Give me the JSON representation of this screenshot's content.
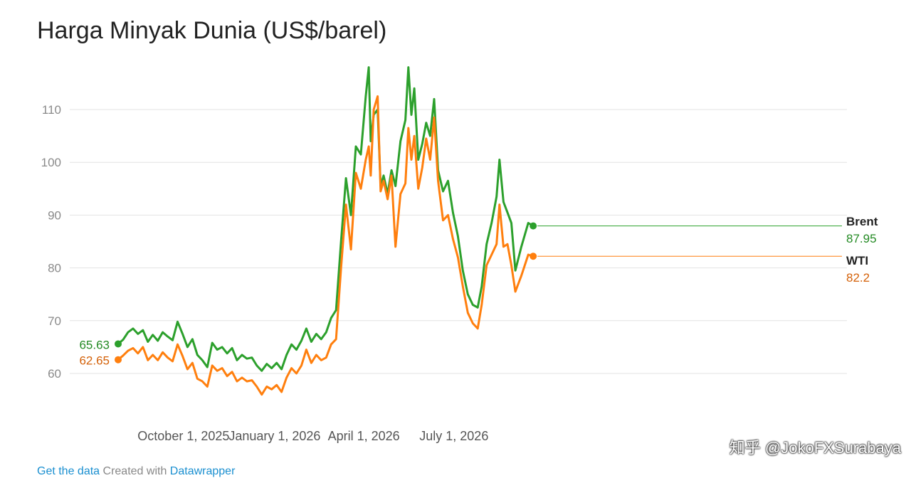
{
  "chart_data": {
    "type": "line",
    "title": "Harga Minyak Dunia (US$/barel)",
    "ylim": [
      55,
      118
    ],
    "yticks": [
      60,
      70,
      80,
      90,
      100,
      110
    ],
    "grid": true,
    "x_tick_labels": [
      {
        "date": "2025-10-01",
        "label": "October 1, 2025"
      },
      {
        "date": "2026-01-01",
        "label": "January 1, 2026"
      },
      {
        "date": "2026-04-01",
        "label": "April 1, 2026"
      },
      {
        "date": "2026-07-01",
        "label": "July 1, 2026"
      }
    ],
    "series": [
      {
        "name": "Brent",
        "color": "#2ca02c",
        "start_label": "65.63",
        "end_label": "87.95",
        "points": [
          [
            "2025-07-27",
            65.6
          ],
          [
            "2025-08-01",
            66.4
          ],
          [
            "2025-08-06",
            67.8
          ],
          [
            "2025-08-11",
            68.5
          ],
          [
            "2025-08-16",
            67.5
          ],
          [
            "2025-08-21",
            68.2
          ],
          [
            "2025-08-26",
            66.0
          ],
          [
            "2025-08-31",
            67.3
          ],
          [
            "2025-09-05",
            66.2
          ],
          [
            "2025-09-10",
            67.8
          ],
          [
            "2025-09-15",
            67.0
          ],
          [
            "2025-09-20",
            66.3
          ],
          [
            "2025-09-25",
            69.8
          ],
          [
            "2025-09-30",
            67.5
          ],
          [
            "2025-10-05",
            65.0
          ],
          [
            "2025-10-10",
            66.5
          ],
          [
            "2025-10-15",
            63.5
          ],
          [
            "2025-10-20",
            62.5
          ],
          [
            "2025-10-25",
            61.2
          ],
          [
            "2025-10-30",
            65.8
          ],
          [
            "2025-11-04",
            64.5
          ],
          [
            "2025-11-09",
            65.0
          ],
          [
            "2025-11-14",
            63.8
          ],
          [
            "2025-11-19",
            64.8
          ],
          [
            "2025-11-24",
            62.5
          ],
          [
            "2025-11-29",
            63.5
          ],
          [
            "2025-12-04",
            62.8
          ],
          [
            "2025-12-09",
            63.0
          ],
          [
            "2025-12-14",
            61.5
          ],
          [
            "2025-12-19",
            60.5
          ],
          [
            "2025-12-24",
            61.8
          ],
          [
            "2025-12-29",
            61.0
          ],
          [
            "2026-01-03",
            62.0
          ],
          [
            "2026-01-08",
            60.8
          ],
          [
            "2026-01-13",
            63.5
          ],
          [
            "2026-01-18",
            65.5
          ],
          [
            "2026-01-23",
            64.5
          ],
          [
            "2026-01-28",
            66.2
          ],
          [
            "2026-02-02",
            68.5
          ],
          [
            "2026-02-07",
            66.0
          ],
          [
            "2026-02-12",
            67.5
          ],
          [
            "2026-02-17",
            66.5
          ],
          [
            "2026-02-22",
            67.8
          ],
          [
            "2026-02-27",
            70.5
          ],
          [
            "2026-03-04",
            72.0
          ],
          [
            "2026-03-09",
            85.0
          ],
          [
            "2026-03-14",
            97.0
          ],
          [
            "2026-03-19",
            90.0
          ],
          [
            "2026-03-24",
            103.0
          ],
          [
            "2026-03-29",
            101.5
          ],
          [
            "2026-04-03",
            112.5
          ],
          [
            "2026-04-06",
            118.0
          ],
          [
            "2026-04-08",
            104.0
          ],
          [
            "2026-04-11",
            109.0
          ],
          [
            "2026-04-15",
            110.0
          ],
          [
            "2026-04-18",
            95.5
          ],
          [
            "2026-04-21",
            97.5
          ],
          [
            "2026-04-25",
            94.0
          ],
          [
            "2026-04-29",
            98.5
          ],
          [
            "2026-05-03",
            95.5
          ],
          [
            "2026-05-08",
            104.0
          ],
          [
            "2026-05-13",
            108.0
          ],
          [
            "2026-05-16",
            118.0
          ],
          [
            "2026-05-19",
            109.0
          ],
          [
            "2026-05-22",
            114.0
          ],
          [
            "2026-05-26",
            100.5
          ],
          [
            "2026-05-30",
            103.5
          ],
          [
            "2026-06-03",
            107.5
          ],
          [
            "2026-06-07",
            105.0
          ],
          [
            "2026-06-11",
            112.0
          ],
          [
            "2026-06-15",
            98.5
          ],
          [
            "2026-06-20",
            94.5
          ],
          [
            "2026-06-25",
            96.5
          ],
          [
            "2026-06-30",
            90.5
          ],
          [
            "2026-07-05",
            86.0
          ],
          [
            "2026-07-10",
            79.5
          ],
          [
            "2026-07-15",
            75.0
          ],
          [
            "2026-07-20",
            73.0
          ],
          [
            "2026-07-25",
            72.5
          ],
          [
            "2026-07-29",
            76.5
          ],
          [
            "2026-08-03",
            84.5
          ],
          [
            "2026-08-08",
            88.5
          ],
          [
            "2026-08-13",
            93.5
          ],
          [
            "2026-08-16",
            100.5
          ],
          [
            "2026-08-20",
            92.5
          ],
          [
            "2026-08-24",
            90.5
          ],
          [
            "2026-08-28",
            88.5
          ],
          [
            "2026-09-01",
            79.5
          ],
          [
            "2026-09-07",
            84.0
          ],
          [
            "2026-09-14",
            88.5
          ],
          [
            "2026-09-19",
            87.95
          ]
        ]
      },
      {
        "name": "WTI",
        "color": "#ff7f0e",
        "start_label": "62.65",
        "end_label": "82.2",
        "points": [
          [
            "2025-07-27",
            62.6
          ],
          [
            "2025-08-01",
            63.4
          ],
          [
            "2025-08-06",
            64.3
          ],
          [
            "2025-08-11",
            64.8
          ],
          [
            "2025-08-16",
            63.8
          ],
          [
            "2025-08-21",
            65.0
          ],
          [
            "2025-08-26",
            62.5
          ],
          [
            "2025-08-31",
            63.5
          ],
          [
            "2025-09-05",
            62.5
          ],
          [
            "2025-09-10",
            64.0
          ],
          [
            "2025-09-15",
            63.0
          ],
          [
            "2025-09-20",
            62.3
          ],
          [
            "2025-09-25",
            65.5
          ],
          [
            "2025-09-30",
            63.3
          ],
          [
            "2025-10-05",
            60.8
          ],
          [
            "2025-10-10",
            62.0
          ],
          [
            "2025-10-15",
            59.0
          ],
          [
            "2025-10-20",
            58.5
          ],
          [
            "2025-10-25",
            57.5
          ],
          [
            "2025-10-30",
            61.5
          ],
          [
            "2025-11-04",
            60.5
          ],
          [
            "2025-11-09",
            61.0
          ],
          [
            "2025-11-14",
            59.5
          ],
          [
            "2025-11-19",
            60.3
          ],
          [
            "2025-11-24",
            58.5
          ],
          [
            "2025-11-29",
            59.2
          ],
          [
            "2025-12-04",
            58.5
          ],
          [
            "2025-12-09",
            58.7
          ],
          [
            "2025-12-14",
            57.5
          ],
          [
            "2025-12-19",
            56.0
          ],
          [
            "2025-12-24",
            57.5
          ],
          [
            "2025-12-29",
            57.0
          ],
          [
            "2026-01-03",
            57.8
          ],
          [
            "2026-01-08",
            56.5
          ],
          [
            "2026-01-13",
            59.2
          ],
          [
            "2026-01-18",
            61.0
          ],
          [
            "2026-01-23",
            60.0
          ],
          [
            "2026-01-28",
            61.5
          ],
          [
            "2026-02-02",
            64.5
          ],
          [
            "2026-02-07",
            62.0
          ],
          [
            "2026-02-12",
            63.5
          ],
          [
            "2026-02-17",
            62.5
          ],
          [
            "2026-02-22",
            63.0
          ],
          [
            "2026-02-27",
            65.5
          ],
          [
            "2026-03-04",
            66.5
          ],
          [
            "2026-03-09",
            80.0
          ],
          [
            "2026-03-14",
            92.0
          ],
          [
            "2026-03-19",
            83.5
          ],
          [
            "2026-03-24",
            98.0
          ],
          [
            "2026-03-29",
            95.0
          ],
          [
            "2026-04-03",
            100.5
          ],
          [
            "2026-04-06",
            103.0
          ],
          [
            "2026-04-08",
            97.5
          ],
          [
            "2026-04-11",
            110.0
          ],
          [
            "2026-04-15",
            112.5
          ],
          [
            "2026-04-18",
            94.5
          ],
          [
            "2026-04-21",
            96.5
          ],
          [
            "2026-04-25",
            93.0
          ],
          [
            "2026-04-29",
            97.5
          ],
          [
            "2026-05-03",
            84.0
          ],
          [
            "2026-05-08",
            94.0
          ],
          [
            "2026-05-13",
            96.0
          ],
          [
            "2026-05-16",
            106.5
          ],
          [
            "2026-05-19",
            100.5
          ],
          [
            "2026-05-22",
            105.0
          ],
          [
            "2026-05-26",
            95.0
          ],
          [
            "2026-05-30",
            99.0
          ],
          [
            "2026-06-03",
            104.5
          ],
          [
            "2026-06-07",
            100.5
          ],
          [
            "2026-06-11",
            108.5
          ],
          [
            "2026-06-15",
            96.5
          ],
          [
            "2026-06-20",
            89.0
          ],
          [
            "2026-06-25",
            90.0
          ],
          [
            "2026-06-30",
            85.5
          ],
          [
            "2026-07-05",
            82.0
          ],
          [
            "2026-07-10",
            76.5
          ],
          [
            "2026-07-15",
            71.5
          ],
          [
            "2026-07-20",
            69.5
          ],
          [
            "2026-07-25",
            68.5
          ],
          [
            "2026-07-29",
            73.0
          ],
          [
            "2026-08-03",
            80.5
          ],
          [
            "2026-08-08",
            82.5
          ],
          [
            "2026-08-13",
            84.5
          ],
          [
            "2026-08-16",
            92.0
          ],
          [
            "2026-08-20",
            84.0
          ],
          [
            "2026-08-24",
            84.5
          ],
          [
            "2026-08-28",
            80.5
          ],
          [
            "2026-09-01",
            75.5
          ],
          [
            "2026-09-07",
            78.5
          ],
          [
            "2026-09-14",
            82.5
          ],
          [
            "2026-09-19",
            82.2
          ]
        ]
      }
    ]
  },
  "footer": {
    "get_data": "Get the data",
    "created_with": "Created with",
    "tool": "Datawrapper"
  },
  "watermark": "知乎 @JokoFXSurabaya"
}
